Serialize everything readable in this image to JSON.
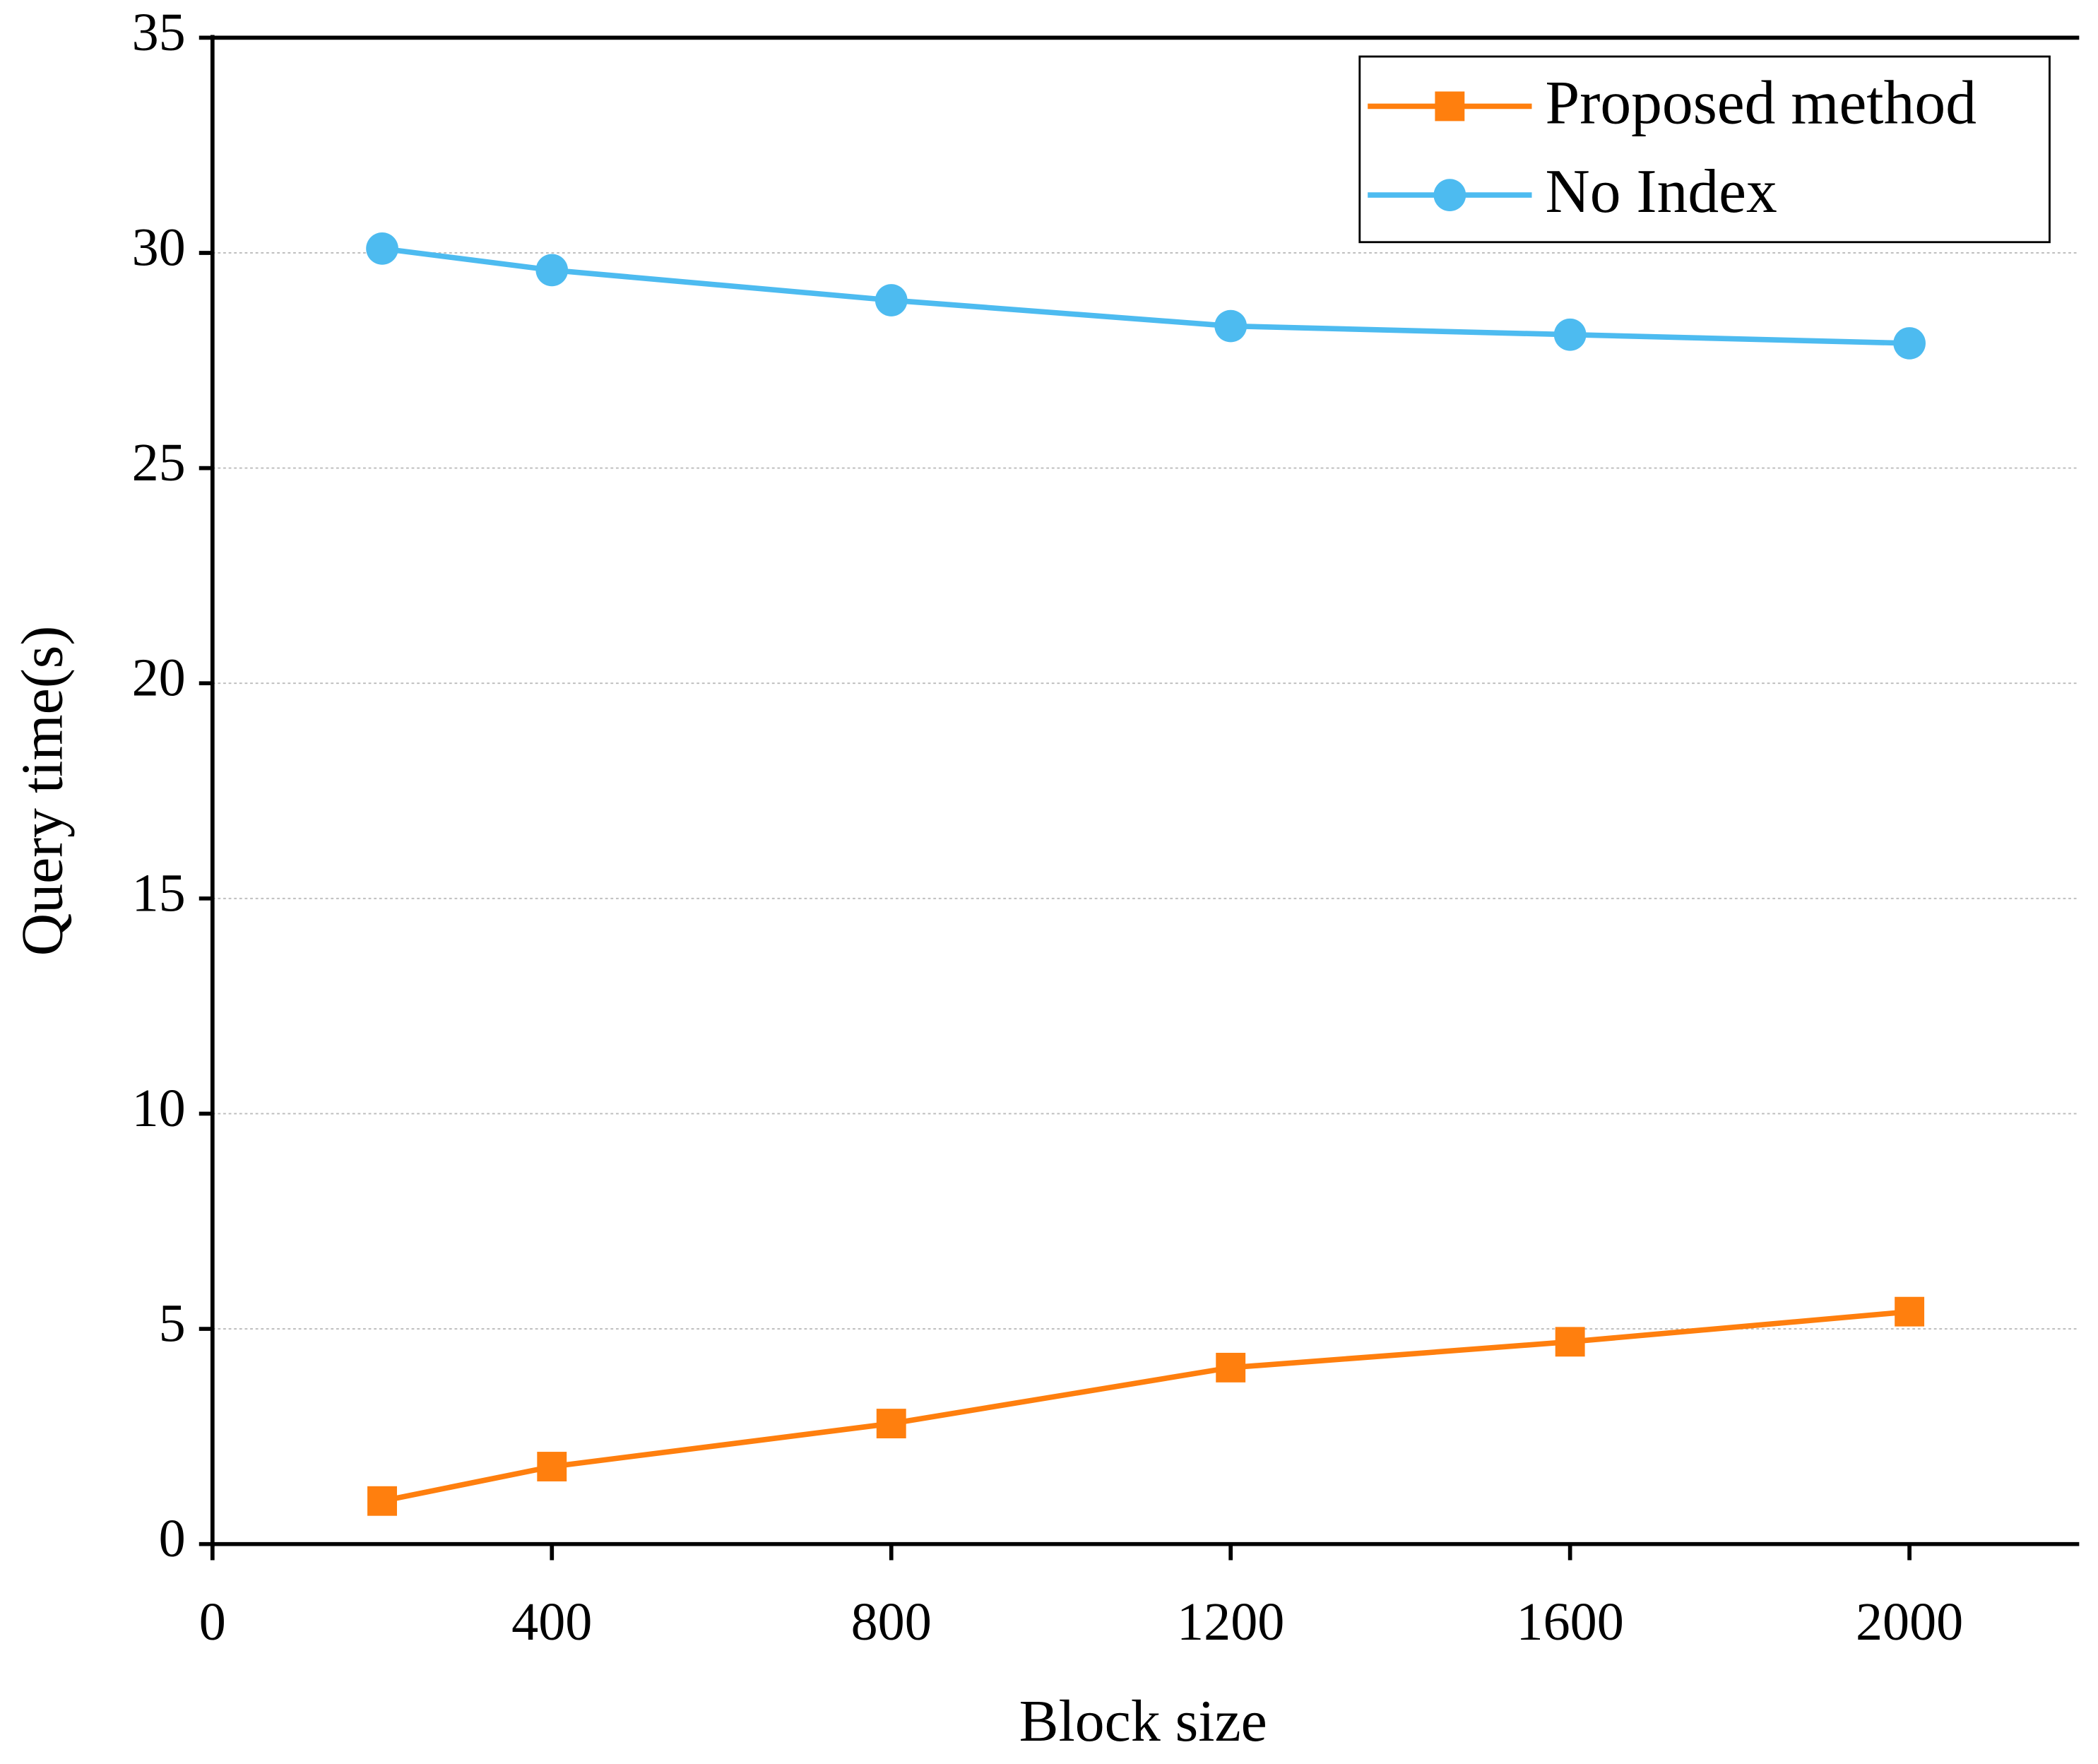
{
  "chart_data": {
    "type": "line",
    "x_label": "Block size",
    "y_label": "Query time(s)",
    "x": [
      200,
      400,
      800,
      1200,
      1600,
      2000
    ],
    "series": [
      {
        "name": "Proposed method",
        "color": "#ff7f0e",
        "marker": "square",
        "values": [
          1.0,
          1.8,
          2.8,
          4.1,
          4.7,
          5.4
        ]
      },
      {
        "name": "No Index",
        "color": "#4dbbf0",
        "marker": "circle",
        "values": [
          30.1,
          29.6,
          28.9,
          28.3,
          28.1,
          27.9
        ]
      }
    ],
    "xlim": [
      0,
      2200
    ],
    "xticks": [
      0,
      400,
      800,
      1200,
      1600,
      2000
    ],
    "ylim": [
      0,
      35
    ],
    "yticks": [
      0,
      5,
      10,
      15,
      20,
      25,
      30,
      35
    ],
    "grid": true,
    "legend_position": "upper right"
  }
}
